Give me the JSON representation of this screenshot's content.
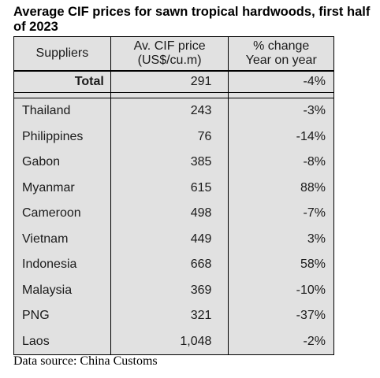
{
  "title": "Average CIF prices for sawn tropical hardwoods, first half of 2023",
  "headers": {
    "col1": "Suppliers",
    "col2_line1": "Av. CIF price",
    "col2_line2": "(US$/cu.m)",
    "col3_line1": "% change",
    "col3_line2": "Year on year"
  },
  "total": {
    "name": "Total",
    "price": "291",
    "change": "-4%"
  },
  "rows": [
    {
      "name": "Thailand",
      "price": "243",
      "change": "-3%"
    },
    {
      "name": "Philippines",
      "price": "76",
      "change": "-14%"
    },
    {
      "name": "Gabon",
      "price": "385",
      "change": "-8%"
    },
    {
      "name": "Myanmar",
      "price": "615",
      "change": "88%"
    },
    {
      "name": "Cameroon",
      "price": "498",
      "change": "-7%"
    },
    {
      "name": "Vietnam",
      "price": "449",
      "change": "3%"
    },
    {
      "name": "Indonesia",
      "price": "668",
      "change": "58%"
    },
    {
      "name": "Malaysia",
      "price": "369",
      "change": "-10%"
    },
    {
      "name": "PNG",
      "price": "321",
      "change": "-37%"
    },
    {
      "name": "Laos",
      "price": "1,048",
      "change": "-2%"
    }
  ],
  "source": "Data source: China Customs",
  "colors": {
    "table_bg": "#e1e1e1",
    "border": "#000000"
  }
}
